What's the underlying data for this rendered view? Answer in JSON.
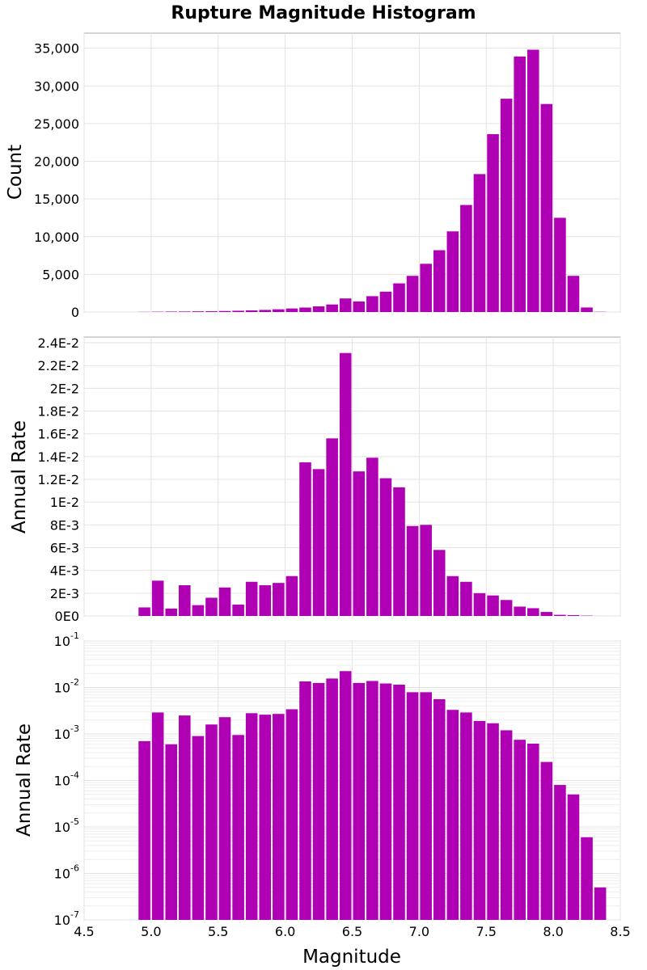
{
  "title": "Rupture Magnitude Histogram",
  "colors": {
    "bar": "#b000b4"
  },
  "chart_data": [
    {
      "type": "bar",
      "id": "count",
      "title": "Rupture Magnitude Histogram",
      "xlabel": "",
      "ylabel": "Count",
      "xlim": [
        4.5,
        8.5
      ],
      "ylim": [
        0,
        37000
      ],
      "yscale": "linear",
      "bin_width": 0.1,
      "yticks": [
        0,
        5000,
        10000,
        15000,
        20000,
        25000,
        30000,
        35000
      ],
      "ytick_labels": [
        "0",
        "5,000",
        "10,000",
        "15,000",
        "20,000",
        "25,000",
        "30,000",
        "35,000"
      ],
      "x": [
        4.95,
        5.05,
        5.15,
        5.25,
        5.35,
        5.45,
        5.55,
        5.65,
        5.75,
        5.85,
        5.95,
        6.05,
        6.15,
        6.25,
        6.35,
        6.45,
        6.55,
        6.65,
        6.75,
        6.85,
        6.95,
        7.05,
        7.15,
        7.25,
        7.35,
        7.45,
        7.55,
        7.65,
        7.75,
        7.85,
        7.95,
        8.05,
        8.15,
        8.25,
        8.35
      ],
      "values": [
        20,
        40,
        60,
        70,
        90,
        100,
        130,
        170,
        220,
        280,
        360,
        470,
        590,
        750,
        1000,
        1800,
        1400,
        2100,
        2700,
        3800,
        4800,
        6400,
        8200,
        10700,
        14200,
        18300,
        23600,
        28300,
        33900,
        34800,
        27600,
        12500,
        4800,
        600,
        30
      ]
    },
    {
      "type": "bar",
      "id": "rate-linear",
      "title": "",
      "xlabel": "",
      "ylabel": "Annual Rate",
      "xlim": [
        4.5,
        8.5
      ],
      "ylim": [
        0,
        0.0245
      ],
      "yscale": "linear",
      "bin_width": 0.1,
      "yticks": [
        0,
        0.002,
        0.004,
        0.006,
        0.008,
        0.01,
        0.012,
        0.014,
        0.016,
        0.018,
        0.02,
        0.022,
        0.024
      ],
      "ytick_labels": [
        "0E0",
        "2E-3",
        "4E-3",
        "6E-3",
        "8E-3",
        "1E-2",
        "1.2E-2",
        "1.4E-2",
        "1.6E-2",
        "1.8E-2",
        "2E-2",
        "2.2E-2",
        "2.4E-2"
      ],
      "x": [
        4.95,
        5.05,
        5.15,
        5.25,
        5.35,
        5.45,
        5.55,
        5.65,
        5.75,
        5.85,
        5.95,
        6.05,
        6.15,
        6.25,
        6.35,
        6.45,
        6.55,
        6.65,
        6.75,
        6.85,
        6.95,
        7.05,
        7.15,
        7.25,
        7.35,
        7.45,
        7.55,
        7.65,
        7.75,
        7.85,
        7.95,
        8.05,
        8.15,
        8.25,
        8.35
      ],
      "values": [
        0.00075,
        0.0031,
        0.00065,
        0.0027,
        0.00095,
        0.0016,
        0.0025,
        0.001,
        0.003,
        0.0027,
        0.0029,
        0.0035,
        0.0135,
        0.0129,
        0.0156,
        0.0231,
        0.0127,
        0.0139,
        0.0121,
        0.0113,
        0.0079,
        0.008,
        0.0058,
        0.0035,
        0.003,
        0.002,
        0.0018,
        0.0014,
        0.00082,
        0.00068,
        0.00035,
        0.0001,
        7e-05,
        3e-05,
        1e-06
      ]
    },
    {
      "type": "bar",
      "id": "rate-log",
      "title": "",
      "xlabel": "Magnitude",
      "ylabel": "Annual Rate",
      "xlim": [
        4.5,
        8.5
      ],
      "ylim": [
        1e-07,
        0.1
      ],
      "yscale": "log",
      "bin_width": 0.1,
      "yticks": [
        1e-07,
        1e-06,
        1e-05,
        0.0001,
        0.001,
        0.01,
        0.1
      ],
      "ytick_labels": [
        {
          "base": "10",
          "exp": "-7"
        },
        {
          "base": "10",
          "exp": "-6"
        },
        {
          "base": "10",
          "exp": "-5"
        },
        {
          "base": "10",
          "exp": "-4"
        },
        {
          "base": "10",
          "exp": "-3"
        },
        {
          "base": "10",
          "exp": "-2"
        },
        {
          "base": "10",
          "exp": "-1"
        }
      ],
      "xticks": [
        4.5,
        5.0,
        5.5,
        6.0,
        6.5,
        7.0,
        7.5,
        8.0,
        8.5
      ],
      "xtick_labels": [
        "4.5",
        "5.0",
        "5.5",
        "6.0",
        "6.5",
        "7.0",
        "7.5",
        "8.0",
        "8.5"
      ],
      "x": [
        4.95,
        5.05,
        5.15,
        5.25,
        5.35,
        5.45,
        5.55,
        5.65,
        5.75,
        5.85,
        5.95,
        6.05,
        6.15,
        6.25,
        6.35,
        6.45,
        6.55,
        6.65,
        6.75,
        6.85,
        6.95,
        7.05,
        7.15,
        7.25,
        7.35,
        7.45,
        7.55,
        7.65,
        7.75,
        7.85,
        7.95,
        8.05,
        8.15,
        8.25,
        8.35
      ],
      "values": [
        0.0007,
        0.0029,
        0.0006,
        0.0025,
        0.0009,
        0.0016,
        0.0023,
        0.00095,
        0.0028,
        0.0026,
        0.0027,
        0.0034,
        0.0135,
        0.0125,
        0.0156,
        0.0225,
        0.0125,
        0.0138,
        0.0122,
        0.0115,
        0.0079,
        0.0079,
        0.0056,
        0.0033,
        0.0029,
        0.0019,
        0.0017,
        0.0012,
        0.00075,
        0.00062,
        0.00025,
        8e-05,
        5e-05,
        6e-06,
        5e-07
      ]
    }
  ]
}
